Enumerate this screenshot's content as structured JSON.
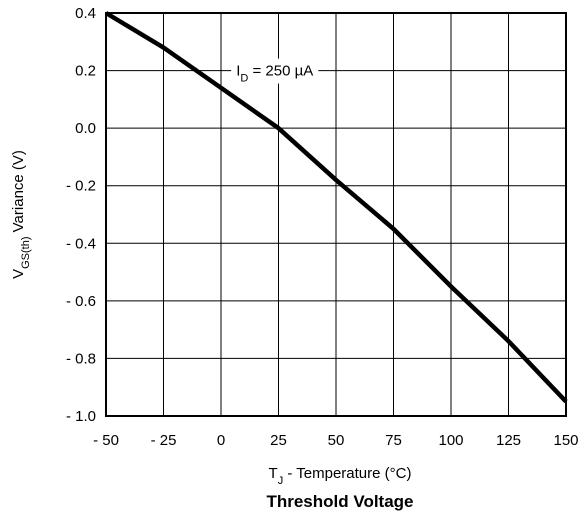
{
  "chart_data": {
    "type": "line",
    "title": "Threshold Voltage",
    "xlabel": {
      "main": "T",
      "sub": "J",
      "rest": " - Temperature (°C)"
    },
    "ylabel": {
      "main": "V",
      "sub": "GS(th)",
      "rest": "  Variance (V)"
    },
    "annotation": {
      "main": "I",
      "sub": "D",
      "rest": " = 250 µA"
    },
    "xlim": [
      -50,
      150
    ],
    "ylim": [
      -1.0,
      0.4
    ],
    "x_ticks": [
      -50,
      -25,
      0,
      25,
      50,
      75,
      100,
      125,
      150
    ],
    "x_tick_labels": [
      "- 50",
      "- 25",
      "0",
      "25",
      "50",
      "75",
      "100",
      "125",
      "150"
    ],
    "y_ticks": [
      0.4,
      0.2,
      0.0,
      -0.2,
      -0.4,
      -0.6,
      -0.8,
      -1.0
    ],
    "y_tick_labels": [
      "0.4",
      "0.2",
      "0.0",
      "- 0.2",
      "- 0.4",
      "- 0.6",
      "- 0.8",
      "- 1.0"
    ],
    "grid": true,
    "series": [
      {
        "x": [
          -50,
          -25,
          0,
          25,
          50,
          75,
          100,
          125,
          150
        ],
        "y": [
          0.4,
          0.28,
          0.14,
          0.0,
          -0.18,
          -0.35,
          -0.55,
          -0.74,
          -0.95
        ],
        "color": "#000000"
      }
    ]
  }
}
